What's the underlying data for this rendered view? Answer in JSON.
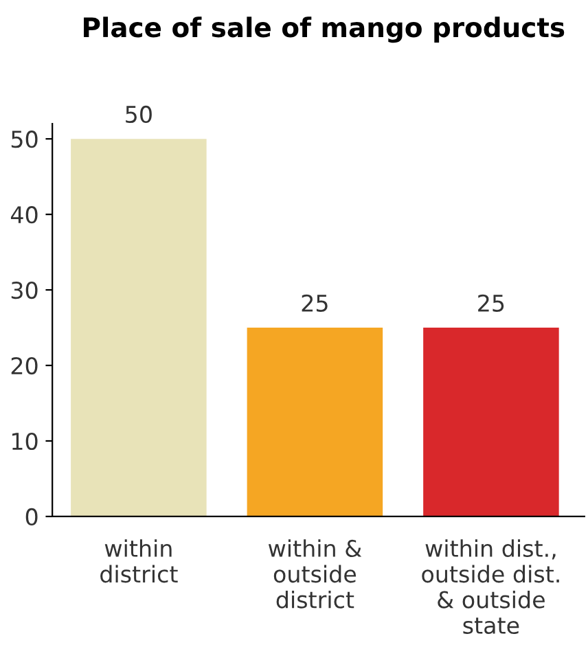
{
  "chart_data": {
    "type": "bar",
    "title": "Place of sale of mango products",
    "categories": [
      "within\ndistrict",
      "within &\noutside\ndistrict",
      "within dist.,\noutside dist.\n& outside\nstate"
    ],
    "values": [
      50,
      25,
      25
    ],
    "colors": [
      "#e8e3b8",
      "#f5a623",
      "#d9282b"
    ],
    "ylim": [
      0,
      52
    ],
    "yticks": [
      0,
      10,
      20,
      30,
      40,
      50
    ],
    "data_labels": true,
    "grid": false
  }
}
